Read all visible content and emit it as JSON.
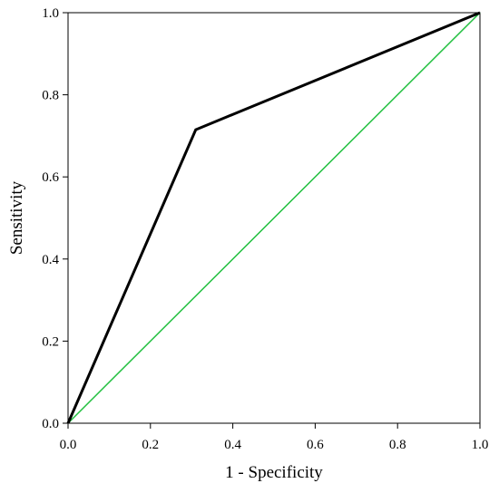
{
  "chart_data": {
    "type": "line",
    "title": "",
    "xlabel": "1 - Specificity",
    "ylabel": "Sensitivity",
    "xlim": [
      0.0,
      1.0
    ],
    "ylim": [
      0.0,
      1.0
    ],
    "x_ticks": [
      "0.0",
      "0.2",
      "0.4",
      "0.6",
      "0.8",
      "1.0"
    ],
    "y_ticks": [
      "0.0",
      "0.2",
      "0.4",
      "0.6",
      "0.8",
      "1.0"
    ],
    "grid": false,
    "legend": "none",
    "series": [
      {
        "x": [
          0.0,
          0.31,
          1.0
        ],
        "y": [
          0.0,
          0.715,
          1.0
        ],
        "color": "#000000"
      },
      {
        "x": [
          0.0,
          1.0
        ],
        "y": [
          0.0,
          1.0
        ],
        "color": "#22c040"
      }
    ]
  }
}
